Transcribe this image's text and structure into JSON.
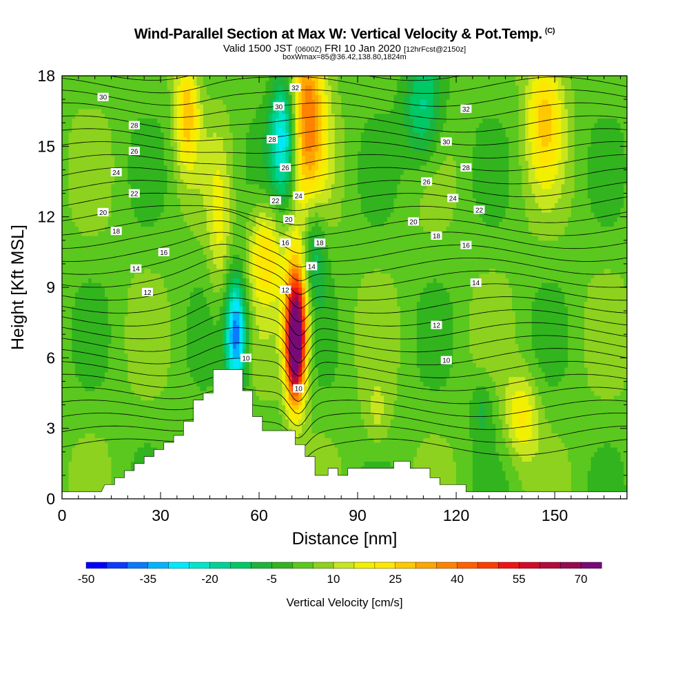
{
  "header": {
    "title": "Wind-Parallel Section at Max W: Vertical Velocity & Pot.Temp.",
    "copyright": "(C)",
    "valid_prefix": "Valid 1500 JST",
    "valid_zulu": "(0600Z)",
    "valid_date": "FRI 10 Jan 2020",
    "forecast": "[12hrFcst@2150z]",
    "box_info": "boxWmax=85@36.42,138.80,1824m"
  },
  "colorbar": {
    "label": "Vertical Velocity [cm/s]",
    "tick_labels": [
      "-50",
      "-35",
      "-20",
      "-5",
      "10",
      "25",
      "40",
      "55",
      "70"
    ],
    "colors": [
      "#0000ff",
      "#0a3cff",
      "#0a7aff",
      "#00b4ff",
      "#00e8ff",
      "#00e6c8",
      "#00d296",
      "#00c864",
      "#1eb43c",
      "#32b41e",
      "#5ac81e",
      "#8cd21e",
      "#c8e61e",
      "#f0f000",
      "#ffe600",
      "#ffc800",
      "#ffa500",
      "#ff8200",
      "#ff5f00",
      "#ff3c00",
      "#f01414",
      "#d20a28",
      "#b40a3c",
      "#960a50",
      "#780a78"
    ]
  },
  "chart_data": {
    "type": "heatmap",
    "xlabel": "Distance [nm]",
    "ylabel": "Height [Kft MSL]",
    "xlim": [
      0,
      172
    ],
    "ylim": [
      0,
      18
    ],
    "xticks": [
      0,
      30,
      60,
      90,
      120,
      150
    ],
    "yticks": [
      0,
      3,
      6,
      9,
      12,
      15,
      18
    ],
    "w_range": [
      -50,
      75
    ],
    "terrain": [
      [
        0,
        0.3
      ],
      [
        12,
        0.3
      ],
      [
        13,
        0.6
      ],
      [
        16,
        0.6
      ],
      [
        16,
        0.9
      ],
      [
        19,
        0.9
      ],
      [
        19,
        1.2
      ],
      [
        22,
        1.2
      ],
      [
        22,
        1.5
      ],
      [
        25,
        1.5
      ],
      [
        25,
        1.8
      ],
      [
        28,
        1.8
      ],
      [
        28,
        2.1
      ],
      [
        31,
        2.1
      ],
      [
        31,
        2.4
      ],
      [
        34,
        2.4
      ],
      [
        34,
        2.7
      ],
      [
        37,
        2.7
      ],
      [
        37,
        3.3
      ],
      [
        40,
        3.3
      ],
      [
        40,
        4.2
      ],
      [
        43,
        4.2
      ],
      [
        43,
        4.5
      ],
      [
        46,
        4.5
      ],
      [
        46,
        5.5
      ],
      [
        55,
        5.5
      ],
      [
        55,
        4.6
      ],
      [
        58,
        4.6
      ],
      [
        58,
        3.5
      ],
      [
        61,
        3.5
      ],
      [
        61,
        2.9
      ],
      [
        71,
        2.9
      ],
      [
        71,
        2.3
      ],
      [
        74,
        2.3
      ],
      [
        74,
        1.8
      ],
      [
        77,
        1.8
      ],
      [
        77,
        1.0
      ],
      [
        81,
        1.0
      ],
      [
        81,
        1.3
      ],
      [
        84,
        1.3
      ],
      [
        84,
        1.0
      ],
      [
        87,
        1.0
      ],
      [
        87,
        1.3
      ],
      [
        101,
        1.3
      ],
      [
        101,
        1.6
      ],
      [
        106,
        1.6
      ],
      [
        106,
        1.3
      ],
      [
        112,
        1.3
      ],
      [
        112,
        0.9
      ],
      [
        115,
        0.9
      ],
      [
        115,
        0.6
      ],
      [
        123,
        0.6
      ],
      [
        123,
        0.3
      ],
      [
        172,
        0.3
      ]
    ],
    "w_features": [
      {
        "x": 71,
        "z": 6.5,
        "sx": 1.4,
        "sz": 2.0,
        "w": 75
      },
      {
        "x": 72,
        "z": 8.5,
        "sx": 2.0,
        "sz": 2.5,
        "w": 30
      },
      {
        "x": 74,
        "z": 16.5,
        "sx": 3.0,
        "sz": 3.5,
        "w": 38
      },
      {
        "x": 62,
        "z": 10.5,
        "sx": 2.5,
        "sz": 1.8,
        "w": 22
      },
      {
        "x": 48,
        "z": 11.5,
        "sx": 1.8,
        "sz": 3.0,
        "w": 12
      },
      {
        "x": 38,
        "z": 16.5,
        "sx": 1.8,
        "sz": 2.0,
        "w": 25
      },
      {
        "x": 68,
        "z": 15.5,
        "sx": 2.2,
        "sz": 2.5,
        "w": -38
      },
      {
        "x": 53,
        "z": 7.0,
        "sx": 1.6,
        "sz": 2.0,
        "w": -42
      },
      {
        "x": 76,
        "z": 10.5,
        "sx": 2.0,
        "sz": 2.0,
        "w": -22
      },
      {
        "x": 110,
        "z": 16.5,
        "sx": 3.0,
        "sz": 2.0,
        "w": -20
      },
      {
        "x": 147,
        "z": 16.5,
        "sx": 2.8,
        "sz": 2.5,
        "w": 22
      },
      {
        "x": 140,
        "z": 3.5,
        "sx": 2.5,
        "sz": 1.5,
        "w": 18
      },
      {
        "x": 96,
        "z": 3.5,
        "sx": 2.0,
        "sz": 1.2,
        "w": 8
      },
      {
        "x": 128,
        "z": 3.8,
        "sx": 1.8,
        "sz": 1.2,
        "w": -10
      }
    ],
    "theta_labels": [
      {
        "text": "30",
        "x": 12.5,
        "z": 17.1
      },
      {
        "text": "28",
        "x": 22,
        "z": 15.9
      },
      {
        "text": "26",
        "x": 22,
        "z": 14.8
      },
      {
        "text": "24",
        "x": 16.5,
        "z": 13.9
      },
      {
        "text": "22",
        "x": 22,
        "z": 13.0
      },
      {
        "text": "20",
        "x": 12.5,
        "z": 12.2
      },
      {
        "text": "18",
        "x": 16.5,
        "z": 11.4
      },
      {
        "text": "16",
        "x": 31,
        "z": 10.5
      },
      {
        "text": "14",
        "x": 22.5,
        "z": 9.8
      },
      {
        "text": "12",
        "x": 26,
        "z": 8.8
      },
      {
        "text": "32",
        "x": 71,
        "z": 17.5
      },
      {
        "text": "30",
        "x": 66,
        "z": 16.7
      },
      {
        "text": "28",
        "x": 64,
        "z": 15.3
      },
      {
        "text": "26",
        "x": 68,
        "z": 14.1
      },
      {
        "text": "24",
        "x": 72,
        "z": 12.9
      },
      {
        "text": "22",
        "x": 65,
        "z": 12.7
      },
      {
        "text": "20",
        "x": 69,
        "z": 11.9
      },
      {
        "text": "18",
        "x": 78.5,
        "z": 10.9
      },
      {
        "text": "16",
        "x": 68,
        "z": 10.9
      },
      {
        "text": "14",
        "x": 76,
        "z": 9.9
      },
      {
        "text": "12",
        "x": 68,
        "z": 8.9
      },
      {
        "text": "10",
        "x": 56,
        "z": 6.0
      },
      {
        "text": "10",
        "x": 72,
        "z": 4.7
      },
      {
        "text": "32",
        "x": 123,
        "z": 16.6
      },
      {
        "text": "30",
        "x": 117,
        "z": 15.2
      },
      {
        "text": "28",
        "x": 123,
        "z": 14.1
      },
      {
        "text": "26",
        "x": 111,
        "z": 13.5
      },
      {
        "text": "24",
        "x": 119,
        "z": 12.8
      },
      {
        "text": "22",
        "x": 127,
        "z": 12.3
      },
      {
        "text": "20",
        "x": 107,
        "z": 11.8
      },
      {
        "text": "18",
        "x": 114,
        "z": 11.2
      },
      {
        "text": "16",
        "x": 123,
        "z": 10.8
      },
      {
        "text": "14",
        "x": 126,
        "z": 9.2
      },
      {
        "text": "12",
        "x": 114,
        "z": 7.4
      },
      {
        "text": "10",
        "x": 117,
        "z": 5.9
      }
    ]
  }
}
